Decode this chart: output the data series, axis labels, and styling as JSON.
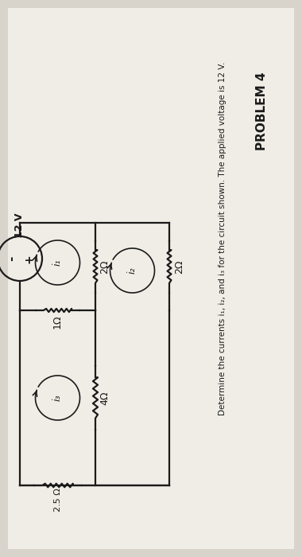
{
  "title": "PROBLEM 4",
  "subtitle_line1": "Determine the currents i",
  "subtitle_line2": ", i",
  "subtitle_line3": ", and i",
  "subtitle_line4": ", for the circuit shown. The applied voltage is 12 V.",
  "bg_color": "#d8d4cc",
  "text_color": "#1a1a1a",
  "voltage_label": "12 V",
  "R_top_mid": "2Ω",
  "R_right": "2Ω",
  "R_mid": "4Ω",
  "R_left_mid": "1Ω",
  "R_bottom": "2.5 Ω",
  "loop_labels": [
    "i₁",
    "i₂",
    "i₃"
  ],
  "plus_sign": "+",
  "minus_sign": "-",
  "figsize": [
    3.8,
    7.0
  ],
  "dpi": 100
}
